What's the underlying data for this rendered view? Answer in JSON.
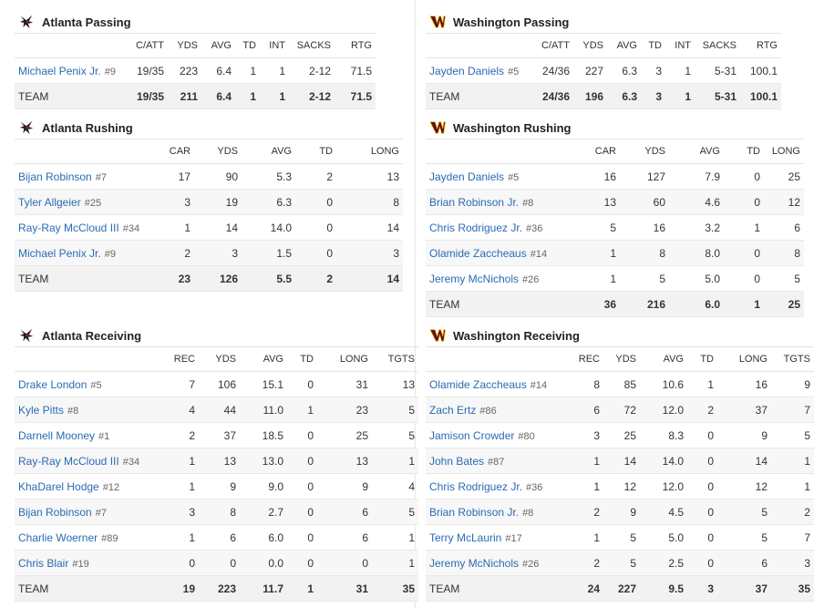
{
  "colors": {
    "link": "#2a6bb3",
    "falcons_red": "#a71930",
    "commanders_burgundy": "#5a1414",
    "commanders_gold": "#ffb612"
  },
  "sections": [
    {
      "id": "atl-passing",
      "title": "Atlanta Passing",
      "team_logo": "falcons-logo-icon",
      "columns": [
        "C/ATT",
        "YDS",
        "AVG",
        "TD",
        "INT",
        "SACKS",
        "RTG"
      ],
      "rows": [
        {
          "name": "Michael Penix Jr.",
          "num": "#9",
          "stats": [
            "19/35",
            "223",
            "6.4",
            "1",
            "1",
            "2-12",
            "71.5"
          ]
        }
      ],
      "team": {
        "label": "TEAM",
        "stats": [
          "19/35",
          "211",
          "6.4",
          "1",
          "1",
          "2-12",
          "71.5"
        ]
      }
    },
    {
      "id": "wsh-passing",
      "title": "Washington Passing",
      "team_logo": "commanders-logo-icon",
      "columns": [
        "C/ATT",
        "YDS",
        "AVG",
        "TD",
        "INT",
        "SACKS",
        "RTG"
      ],
      "rows": [
        {
          "name": "Jayden Daniels",
          "num": "#5",
          "stats": [
            "24/36",
            "227",
            "6.3",
            "3",
            "1",
            "5-31",
            "100.1"
          ]
        }
      ],
      "team": {
        "label": "TEAM",
        "stats": [
          "24/36",
          "196",
          "6.3",
          "3",
          "1",
          "5-31",
          "100.1"
        ]
      }
    },
    {
      "id": "atl-rushing",
      "title": "Atlanta Rushing",
      "team_logo": "falcons-logo-icon",
      "columns": [
        "CAR",
        "YDS",
        "AVG",
        "TD",
        "LONG"
      ],
      "rows": [
        {
          "name": "Bijan Robinson",
          "num": "#7",
          "stats": [
            "17",
            "90",
            "5.3",
            "2",
            "13"
          ]
        },
        {
          "name": "Tyler Allgeier",
          "num": "#25",
          "stats": [
            "3",
            "19",
            "6.3",
            "0",
            "8"
          ]
        },
        {
          "name": "Ray-Ray McCloud III",
          "num": "#34",
          "stats": [
            "1",
            "14",
            "14.0",
            "0",
            "14"
          ]
        },
        {
          "name": "Michael Penix Jr.",
          "num": "#9",
          "stats": [
            "2",
            "3",
            "1.5",
            "0",
            "3"
          ]
        }
      ],
      "team": {
        "label": "TEAM",
        "stats": [
          "23",
          "126",
          "5.5",
          "2",
          "14"
        ]
      }
    },
    {
      "id": "wsh-rushing",
      "title": "Washington Rushing",
      "team_logo": "commanders-logo-icon",
      "columns": [
        "CAR",
        "YDS",
        "AVG",
        "TD",
        "LONG"
      ],
      "rows": [
        {
          "name": "Jayden Daniels",
          "num": "#5",
          "stats": [
            "16",
            "127",
            "7.9",
            "0",
            "25"
          ]
        },
        {
          "name": "Brian Robinson Jr.",
          "num": "#8",
          "stats": [
            "13",
            "60",
            "4.6",
            "0",
            "12"
          ]
        },
        {
          "name": "Chris Rodriguez Jr.",
          "num": "#36",
          "stats": [
            "5",
            "16",
            "3.2",
            "1",
            "6"
          ]
        },
        {
          "name": "Olamide Zaccheaus",
          "num": "#14",
          "stats": [
            "1",
            "8",
            "8.0",
            "0",
            "8"
          ]
        },
        {
          "name": "Jeremy McNichols",
          "num": "#26",
          "stats": [
            "1",
            "5",
            "5.0",
            "0",
            "5"
          ]
        }
      ],
      "team": {
        "label": "TEAM",
        "stats": [
          "36",
          "216",
          "6.0",
          "1",
          "25"
        ]
      }
    },
    {
      "id": "atl-receiving",
      "title": "Atlanta Receiving",
      "team_logo": "falcons-logo-icon",
      "columns": [
        "REC",
        "YDS",
        "AVG",
        "TD",
        "LONG",
        "TGTS"
      ],
      "rows": [
        {
          "name": "Drake London",
          "num": "#5",
          "stats": [
            "7",
            "106",
            "15.1",
            "0",
            "31",
            "13"
          ]
        },
        {
          "name": "Kyle Pitts",
          "num": "#8",
          "stats": [
            "4",
            "44",
            "11.0",
            "1",
            "23",
            "5"
          ]
        },
        {
          "name": "Darnell Mooney",
          "num": "#1",
          "stats": [
            "2",
            "37",
            "18.5",
            "0",
            "25",
            "5"
          ]
        },
        {
          "name": "Ray-Ray McCloud III",
          "num": "#34",
          "stats": [
            "1",
            "13",
            "13.0",
            "0",
            "13",
            "1"
          ]
        },
        {
          "name": "KhaDarel Hodge",
          "num": "#12",
          "stats": [
            "1",
            "9",
            "9.0",
            "0",
            "9",
            "4"
          ]
        },
        {
          "name": "Bijan Robinson",
          "num": "#7",
          "stats": [
            "3",
            "8",
            "2.7",
            "0",
            "6",
            "5"
          ]
        },
        {
          "name": "Charlie Woerner",
          "num": "#89",
          "stats": [
            "1",
            "6",
            "6.0",
            "0",
            "6",
            "1"
          ]
        },
        {
          "name": "Chris Blair",
          "num": "#19",
          "stats": [
            "0",
            "0",
            "0.0",
            "0",
            "0",
            "1"
          ]
        }
      ],
      "team": {
        "label": "TEAM",
        "stats": [
          "19",
          "223",
          "11.7",
          "1",
          "31",
          "35"
        ]
      }
    },
    {
      "id": "wsh-receiving",
      "title": "Washington Receiving",
      "team_logo": "commanders-logo-icon",
      "columns": [
        "REC",
        "YDS",
        "AVG",
        "TD",
        "LONG",
        "TGTS"
      ],
      "rows": [
        {
          "name": "Olamide Zaccheaus",
          "num": "#14",
          "stats": [
            "8",
            "85",
            "10.6",
            "1",
            "16",
            "9"
          ]
        },
        {
          "name": "Zach Ertz",
          "num": "#86",
          "stats": [
            "6",
            "72",
            "12.0",
            "2",
            "37",
            "7"
          ]
        },
        {
          "name": "Jamison Crowder",
          "num": "#80",
          "stats": [
            "3",
            "25",
            "8.3",
            "0",
            "9",
            "5"
          ]
        },
        {
          "name": "John Bates",
          "num": "#87",
          "stats": [
            "1",
            "14",
            "14.0",
            "0",
            "14",
            "1"
          ]
        },
        {
          "name": "Chris Rodriguez Jr.",
          "num": "#36",
          "stats": [
            "1",
            "12",
            "12.0",
            "0",
            "12",
            "1"
          ]
        },
        {
          "name": "Brian Robinson Jr.",
          "num": "#8",
          "stats": [
            "2",
            "9",
            "4.5",
            "0",
            "5",
            "2"
          ]
        },
        {
          "name": "Terry McLaurin",
          "num": "#17",
          "stats": [
            "1",
            "5",
            "5.0",
            "0",
            "5",
            "7"
          ]
        },
        {
          "name": "Jeremy McNichols",
          "num": "#26",
          "stats": [
            "2",
            "5",
            "2.5",
            "0",
            "6",
            "3"
          ]
        }
      ],
      "team": {
        "label": "TEAM",
        "stats": [
          "24",
          "227",
          "9.5",
          "3",
          "37",
          "35"
        ]
      }
    }
  ]
}
